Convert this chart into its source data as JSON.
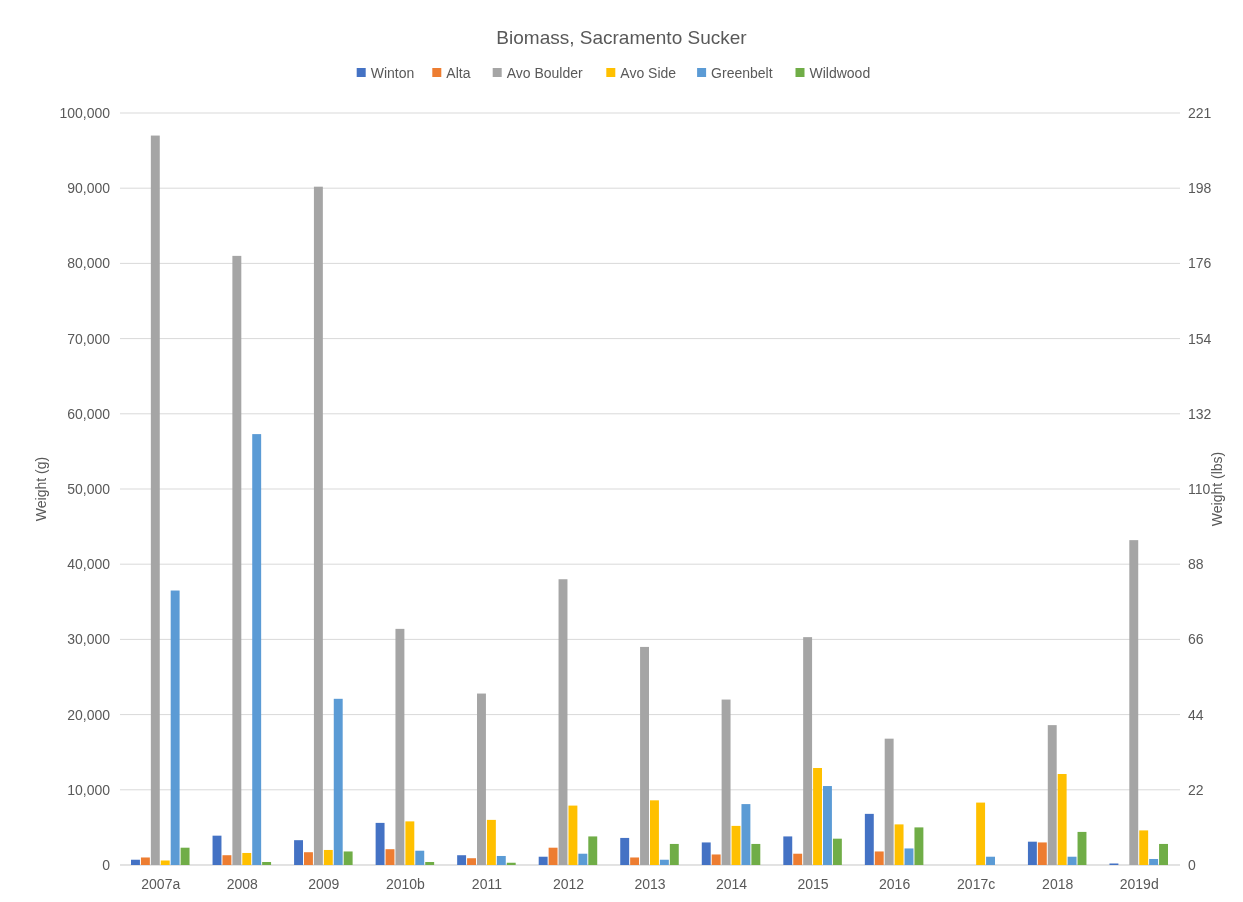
{
  "chart_data": {
    "type": "bar",
    "title": "Biomass, Sacramento Sucker",
    "ylabel": "Weight (g)",
    "y2label": "Weight (lbs)",
    "categories": [
      "2007a",
      "2008",
      "2009",
      "2010b",
      "2011",
      "2012",
      "2013",
      "2014",
      "2015",
      "2016",
      "2017c",
      "2018",
      "2019d"
    ],
    "series": [
      {
        "name": "Winton",
        "color": "#4472c4",
        "values": [
          700,
          3900,
          3300,
          5600,
          1300,
          1100,
          3600,
          3000,
          3800,
          6800,
          null,
          3100,
          200
        ]
      },
      {
        "name": "Alta",
        "color": "#ed7d31",
        "values": [
          1000,
          1300,
          1700,
          2100,
          900,
          2300,
          1000,
          1400,
          1500,
          1800,
          null,
          3000,
          null
        ]
      },
      {
        "name": "Avo Boulder",
        "color": "#a5a5a5",
        "values": [
          97000,
          81000,
          90200,
          31400,
          22800,
          38000,
          29000,
          22000,
          30300,
          16800,
          null,
          18600,
          43200
        ]
      },
      {
        "name": "Avo Side",
        "color": "#ffc000",
        "values": [
          600,
          1600,
          2000,
          5800,
          6000,
          7900,
          8600,
          5200,
          12900,
          5400,
          8300,
          12100,
          4600
        ]
      },
      {
        "name": "Greenbelt",
        "color": "#5b9bd5",
        "values": [
          36500,
          57300,
          22100,
          1900,
          1200,
          1500,
          700,
          8100,
          10500,
          2200,
          1100,
          1100,
          800
        ]
      },
      {
        "name": "Wildwood",
        "color": "#70ad47",
        "values": [
          2300,
          400,
          1800,
          400,
          300,
          3800,
          2800,
          2800,
          3500,
          5000,
          null,
          4400,
          2800
        ]
      }
    ],
    "ylim": [
      0,
      100000
    ],
    "yticks": [
      {
        "value": 0,
        "label": "0"
      },
      {
        "value": 10000,
        "label": "10,000"
      },
      {
        "value": 20000,
        "label": "20,000"
      },
      {
        "value": 30000,
        "label": "30,000"
      },
      {
        "value": 40000,
        "label": "40,000"
      },
      {
        "value": 50000,
        "label": "50,000"
      },
      {
        "value": 60000,
        "label": "60,000"
      },
      {
        "value": 70000,
        "label": "70,000"
      },
      {
        "value": 80000,
        "label": "80,000"
      },
      {
        "value": 90000,
        "label": "90,000"
      },
      {
        "value": 100000,
        "label": "100,000"
      }
    ],
    "y2lim": [
      0,
      220.5
    ],
    "y2ticks": [
      0,
      {
        "value": 22.05,
        "label": "22"
      },
      {
        "value": 44.1,
        "label": "44"
      },
      {
        "value": 66.15,
        "label": "66"
      },
      {
        "value": 88.2,
        "label": "88"
      },
      {
        "value": 110.25,
        "label": "110"
      },
      {
        "value": 132.3,
        "label": "132"
      },
      {
        "value": 154.35,
        "label": "154"
      },
      {
        "value": 176.4,
        "label": "176"
      },
      {
        "value": 198.45,
        "label": "198"
      },
      {
        "value": 220.5,
        "label": "221"
      }
    ],
    "grid": "y",
    "legend": "top"
  }
}
